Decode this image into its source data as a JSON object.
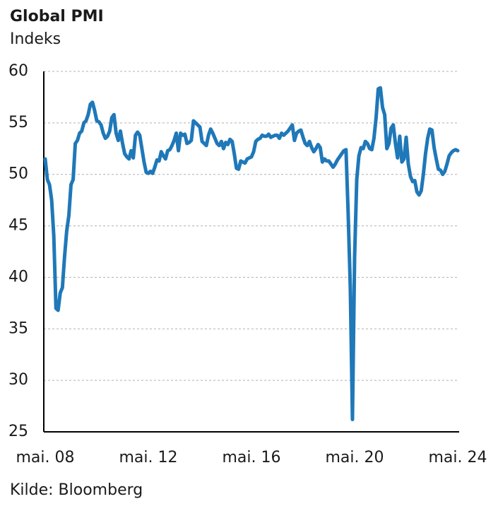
{
  "chart_data": {
    "type": "line",
    "title": "Global PMI",
    "subtitle": "Indeks",
    "source": "Kilde: Bloomberg",
    "categories": [
      "mai. 08",
      null,
      null,
      null,
      null,
      null,
      null,
      null,
      null,
      null,
      null,
      null,
      null,
      null,
      null,
      null,
      null,
      null,
      null,
      null,
      null,
      null,
      null,
      null,
      null,
      null,
      null,
      null,
      null,
      null,
      null,
      null,
      null,
      null,
      null,
      null,
      null,
      null,
      null,
      null,
      null,
      null,
      null,
      null,
      null,
      null,
      null,
      null,
      "mai. 12",
      null,
      null,
      null,
      null,
      null,
      null,
      null,
      null,
      null,
      null,
      null,
      null,
      null,
      null,
      null,
      null,
      null,
      null,
      null,
      null,
      null,
      null,
      null,
      null,
      null,
      null,
      null,
      null,
      null,
      null,
      null,
      null,
      null,
      null,
      null,
      null,
      null,
      null,
      null,
      null,
      null,
      null,
      null,
      null,
      null,
      null,
      null,
      "mai. 16",
      null,
      null,
      null,
      null,
      null,
      null,
      null,
      null,
      null,
      null,
      null,
      null,
      null,
      null,
      null,
      null,
      null,
      null,
      null,
      null,
      null,
      null,
      null,
      null,
      null,
      null,
      null,
      null,
      null,
      null,
      null,
      null,
      null,
      null,
      null,
      null,
      null,
      null,
      null,
      null,
      null,
      null,
      null,
      null,
      null,
      null,
      null,
      "mai. 20",
      null,
      null,
      null,
      null,
      null,
      null,
      null,
      null,
      null,
      null,
      null,
      null,
      null,
      null,
      null,
      null,
      null,
      null,
      null,
      null,
      null,
      null,
      null,
      null,
      null,
      null,
      null,
      null,
      null,
      null,
      null,
      null,
      null,
      null,
      null,
      null,
      null,
      null,
      null,
      null,
      null,
      null,
      null,
      null,
      null,
      null,
      null,
      "mai. 24"
    ],
    "series": [
      {
        "name": "Global PMI",
        "color": "#1f78b8",
        "values": [
          51.5,
          49.5,
          49.0,
          47.5,
          44.0,
          37.0,
          36.8,
          38.5,
          39.0,
          42.0,
          44.5,
          46.0,
          49.0,
          49.5,
          53.0,
          53.3,
          54.0,
          54.2,
          55.0,
          55.2,
          55.8,
          56.8,
          57.0,
          56.2,
          55.2,
          55.1,
          54.8,
          54.0,
          53.5,
          53.7,
          54.2,
          55.5,
          55.8,
          54.0,
          53.3,
          54.2,
          53.0,
          52.0,
          51.7,
          51.5,
          52.3,
          51.6,
          53.8,
          54.1,
          53.8,
          52.5,
          51.2,
          50.2,
          50.1,
          50.3,
          50.1,
          50.7,
          51.4,
          51.3,
          52.2,
          51.8,
          51.5,
          52.3,
          52.4,
          52.8,
          53.3,
          54.0,
          52.3,
          54.0,
          53.8,
          53.9,
          53.0,
          53.1,
          53.3,
          55.2,
          55.0,
          54.8,
          54.6,
          53.2,
          53.0,
          52.8,
          53.8,
          54.4,
          54.0,
          53.5,
          53.0,
          52.8,
          53.2,
          52.5,
          53.1,
          52.9,
          53.4,
          53.2,
          52.0,
          50.6,
          50.5,
          51.3,
          51.2,
          51.1,
          51.5,
          51.6,
          51.7,
          52.2,
          53.2,
          53.4,
          53.5,
          53.8,
          53.7,
          53.7,
          53.9,
          53.6,
          53.7,
          53.8,
          53.8,
          53.5,
          54.0,
          53.8,
          54.0,
          54.2,
          54.5,
          54.8,
          53.3,
          54.0,
          54.2,
          54.3,
          53.6,
          53.0,
          52.8,
          53.2,
          52.6,
          52.2,
          52.5,
          52.9,
          52.6,
          51.2,
          51.5,
          51.3,
          51.3,
          51.0,
          50.7,
          51.0,
          51.4,
          51.7,
          52.0,
          52.3,
          52.4,
          46.2,
          39.0,
          26.2,
          42.0,
          49.5,
          51.8,
          52.6,
          52.5,
          53.2,
          53.0,
          52.5,
          52.4,
          53.5,
          55.5,
          58.3,
          58.4,
          56.5,
          55.8,
          52.5,
          53.0,
          54.5,
          54.8,
          53.0,
          51.6,
          53.7,
          51.2,
          51.5,
          53.6,
          51.0,
          49.8,
          49.3,
          49.4,
          48.3,
          48.0,
          48.4,
          50.0,
          52.0,
          53.5,
          54.4,
          54.3,
          52.6,
          51.5,
          50.5,
          50.4,
          50.0,
          50.3,
          51.0,
          51.8,
          52.1,
          52.3,
          52.4,
          52.3
        ]
      }
    ],
    "ylim": [
      25,
      60
    ],
    "yticks": [
      25,
      30,
      35,
      40,
      45,
      50,
      55,
      60
    ],
    "grid": true
  }
}
